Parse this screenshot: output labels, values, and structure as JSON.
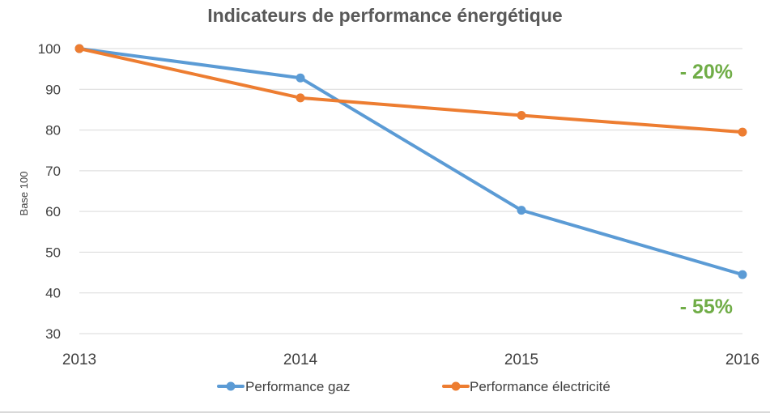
{
  "chart_data": {
    "type": "line",
    "title": "Indicateurs de performance énergétique",
    "xlabel": "",
    "ylabel": "Base 100",
    "x": [
      "2013",
      "2014",
      "2015",
      "2016"
    ],
    "ylim": [
      30,
      100
    ],
    "yticks": [
      30,
      40,
      50,
      60,
      70,
      80,
      90,
      100
    ],
    "grid": true,
    "legend_position": "bottom",
    "series": [
      {
        "name": "Performance gaz",
        "color": "#5B9BD5",
        "values": [
          100,
          92.8,
          60.3,
          44.5
        ]
      },
      {
        "name": "Performance électricité",
        "color": "#ED7D31",
        "values": [
          100,
          87.9,
          83.6,
          79.5
        ]
      }
    ],
    "annotations": [
      {
        "text": "- 20%",
        "series": 1,
        "color": "#70AD47"
      },
      {
        "text": "- 55%",
        "series": 0,
        "color": "#70AD47"
      }
    ]
  }
}
